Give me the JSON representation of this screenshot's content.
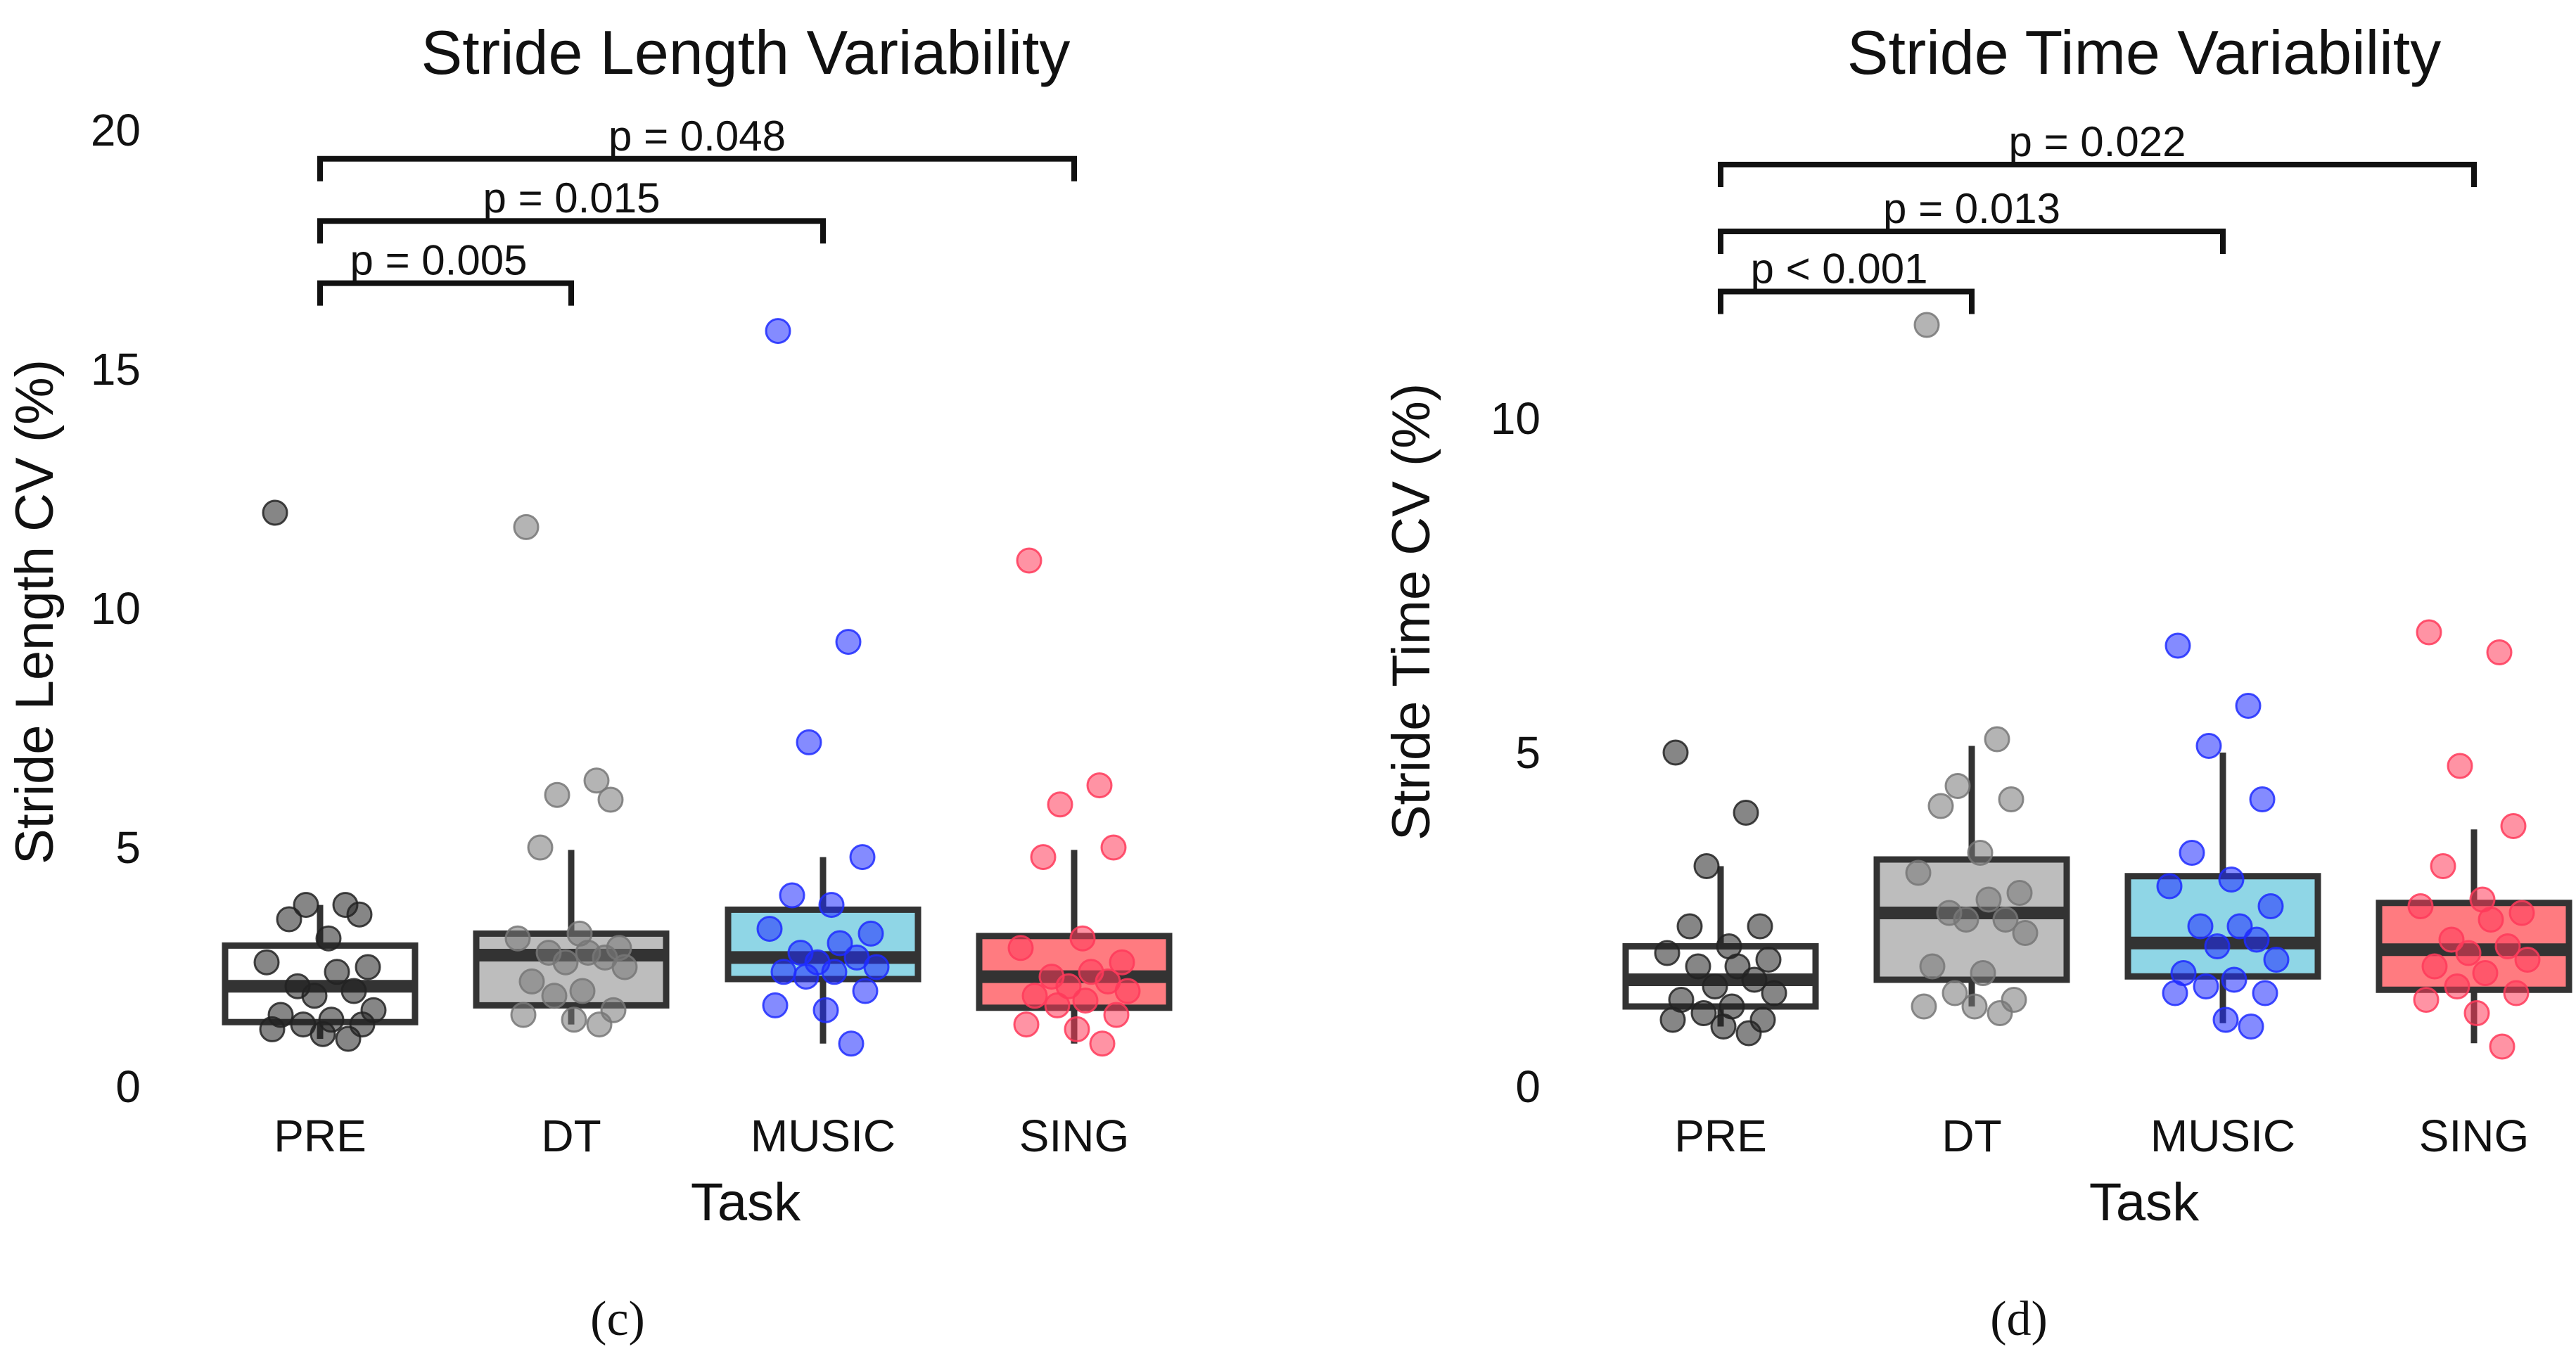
{
  "colors": {
    "PRE": "#ffffff",
    "DT": "#bdbdbd",
    "MUSIC": "#8fd6e6",
    "SING": "#ff7b80",
    "PRE_point": "#222222",
    "DT_point": "#777777",
    "MUSIC_point": "#1f2cff",
    "SING_point": "#ff3a5a",
    "outline": "#333333"
  },
  "chart_data": [
    {
      "type": "box",
      "title": "Stride Length Variability",
      "xlabel": "Task",
      "ylabel": "Stride Length CV (%)",
      "ylim": [
        0,
        20
      ],
      "yticks": [
        "0",
        "5",
        "10",
        "15",
        "20"
      ],
      "categories": [
        "PRE",
        "DT",
        "MUSIC",
        "SING"
      ],
      "caption": "(c)",
      "boxes": [
        {
          "whisker_low": 1.0,
          "q1": 1.35,
          "median": 2.1,
          "q3": 2.95,
          "whisker_high": 3.8
        },
        {
          "whisker_low": 1.3,
          "q1": 1.7,
          "median": 2.75,
          "q3": 3.2,
          "whisker_high": 4.95
        },
        {
          "whisker_low": 0.9,
          "q1": 2.25,
          "median": 2.7,
          "q3": 3.7,
          "whisker_high": 4.8
        },
        {
          "whisker_low": 0.9,
          "q1": 1.65,
          "median": 2.3,
          "q3": 3.15,
          "whisker_high": 4.95
        }
      ],
      "points": [
        [
          12.0,
          3.8,
          3.8,
          3.6,
          3.5,
          3.1,
          2.6,
          2.5,
          2.4,
          2.1,
          2.0,
          1.9,
          1.6,
          1.5,
          1.4,
          1.3,
          1.3,
          1.2,
          1.1,
          1.0
        ],
        [
          11.7,
          6.4,
          6.1,
          6.0,
          5.0,
          3.2,
          3.1,
          2.9,
          2.8,
          2.8,
          2.7,
          2.6,
          2.5,
          2.2,
          2.0,
          1.9,
          1.6,
          1.5,
          1.4,
          1.3
        ],
        [
          15.8,
          9.3,
          7.2,
          4.8,
          4.0,
          3.8,
          3.3,
          3.2,
          3.0,
          2.8,
          2.7,
          2.6,
          2.5,
          2.4,
          2.4,
          2.3,
          2.0,
          1.7,
          1.6,
          0.9
        ],
        [
          11.0,
          6.3,
          5.9,
          5.0,
          4.8,
          3.1,
          2.9,
          2.6,
          2.4,
          2.3,
          2.2,
          2.1,
          2.0,
          1.9,
          1.8,
          1.7,
          1.5,
          1.3,
          1.2,
          0.9
        ]
      ],
      "significance": [
        {
          "from": 0,
          "to": 3,
          "label": "p = 0.048",
          "level": 19.4
        },
        {
          "from": 0,
          "to": 2,
          "label": "p = 0.015",
          "level": 18.1
        },
        {
          "from": 0,
          "to": 1,
          "label": "p = 0.005",
          "level": 16.8
        }
      ]
    },
    {
      "type": "box",
      "title": "Stride Time Variability",
      "xlabel": "Task",
      "ylabel": "Stride Time CV (%)",
      "ylim": [
        0,
        14.3
      ],
      "yticks": [
        "0",
        "5",
        "10"
      ],
      "categories": [
        "PRE",
        "DT",
        "MUSIC",
        "SING"
      ],
      "caption": "(d)",
      "boxes": [
        {
          "whisker_low": 0.9,
          "q1": 1.2,
          "median": 1.6,
          "q3": 2.1,
          "whisker_high": 3.3
        },
        {
          "whisker_low": 1.2,
          "q1": 1.6,
          "median": 2.6,
          "q3": 3.4,
          "whisker_high": 5.1
        },
        {
          "whisker_low": 0.95,
          "q1": 1.65,
          "median": 2.15,
          "q3": 3.15,
          "whisker_high": 5.0
        },
        {
          "whisker_low": 0.65,
          "q1": 1.45,
          "median": 2.05,
          "q3": 2.75,
          "whisker_high": 3.85
        }
      ],
      "points": [
        [
          5.0,
          4.1,
          3.3,
          2.4,
          2.4,
          2.1,
          2.0,
          1.9,
          1.8,
          1.8,
          1.6,
          1.5,
          1.4,
          1.3,
          1.2,
          1.1,
          1.0,
          1.0,
          0.9,
          0.8
        ],
        [
          11.4,
          5.2,
          4.5,
          4.3,
          4.2,
          3.5,
          3.2,
          2.9,
          2.8,
          2.6,
          2.5,
          2.5,
          2.3,
          1.8,
          1.7,
          1.4,
          1.3,
          1.2,
          1.2,
          1.1
        ],
        [
          6.6,
          5.7,
          5.1,
          4.3,
          3.5,
          3.1,
          3.0,
          2.7,
          2.4,
          2.4,
          2.2,
          2.1,
          1.9,
          1.7,
          1.6,
          1.5,
          1.4,
          1.4,
          1.0,
          0.9
        ],
        [
          6.8,
          6.5,
          4.8,
          3.9,
          3.3,
          2.8,
          2.7,
          2.6,
          2.5,
          2.2,
          2.1,
          2.0,
          1.9,
          1.8,
          1.7,
          1.5,
          1.4,
          1.3,
          1.1,
          0.6
        ]
      ],
      "significance": [
        {
          "from": 0,
          "to": 3,
          "label": "p = 0.022",
          "level": 13.8
        },
        {
          "from": 0,
          "to": 2,
          "label": "p = 0.013",
          "level": 12.8
        },
        {
          "from": 0,
          "to": 1,
          "label": "p < 0.001",
          "level": 11.9
        }
      ]
    }
  ]
}
